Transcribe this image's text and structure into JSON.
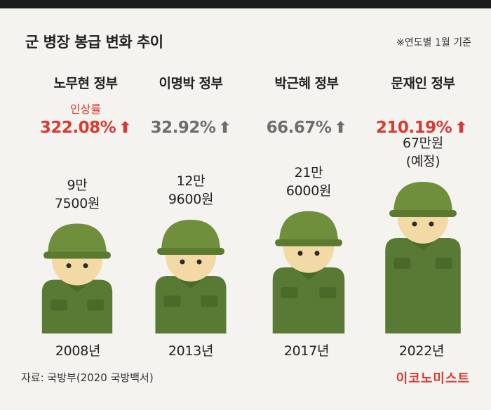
{
  "header": {
    "title": "군 병장 봉급 변화 추이",
    "note": "※연도별 1월 기준"
  },
  "rate_label": "인상률",
  "columns": [
    {
      "government": "노무현 정부",
      "rate": "322.08%",
      "year": "2008년",
      "amount_line1": "9만",
      "amount_line2": "7500원",
      "highlight": true
    },
    {
      "government": "이명박 정부",
      "rate": "32.92%",
      "year": "2013년",
      "amount_line1": "12만",
      "amount_line2": "9600원",
      "highlight": false
    },
    {
      "government": "박근혜 정부",
      "rate": "66.67%",
      "year": "2017년",
      "amount_line1": "21만",
      "amount_line2": "6000원",
      "highlight": false
    },
    {
      "government": "문재인 정부",
      "rate": "210.19%",
      "year": "2022년",
      "amount_line1": "67만원",
      "amount_line2": "(예정)",
      "highlight": true
    }
  ],
  "chart_data": {
    "type": "bar",
    "title": "군 병장 봉급 변화 추이",
    "categories": [
      "2008년",
      "2013년",
      "2017년",
      "2022년"
    ],
    "values": [
      97500,
      129600,
      216000,
      676100
    ],
    "increase_rates_percent": [
      322.08,
      32.92,
      66.67,
      210.19
    ],
    "series": [
      {
        "values": [
          97500,
          129600,
          216000,
          676100
        ]
      }
    ]
  },
  "footer": {
    "source": "자료: 국방부(2020 국방백서)",
    "brand": "이코노미스트"
  },
  "colors": {
    "accent": "#d93a31",
    "neutral_rate": "#6e6e6e",
    "helmet": "#6f8f3c",
    "uniform": "#587a34",
    "face": "#f2d9a6"
  },
  "icons": [
    "up-arrow-icon",
    "soldier-icon"
  ]
}
